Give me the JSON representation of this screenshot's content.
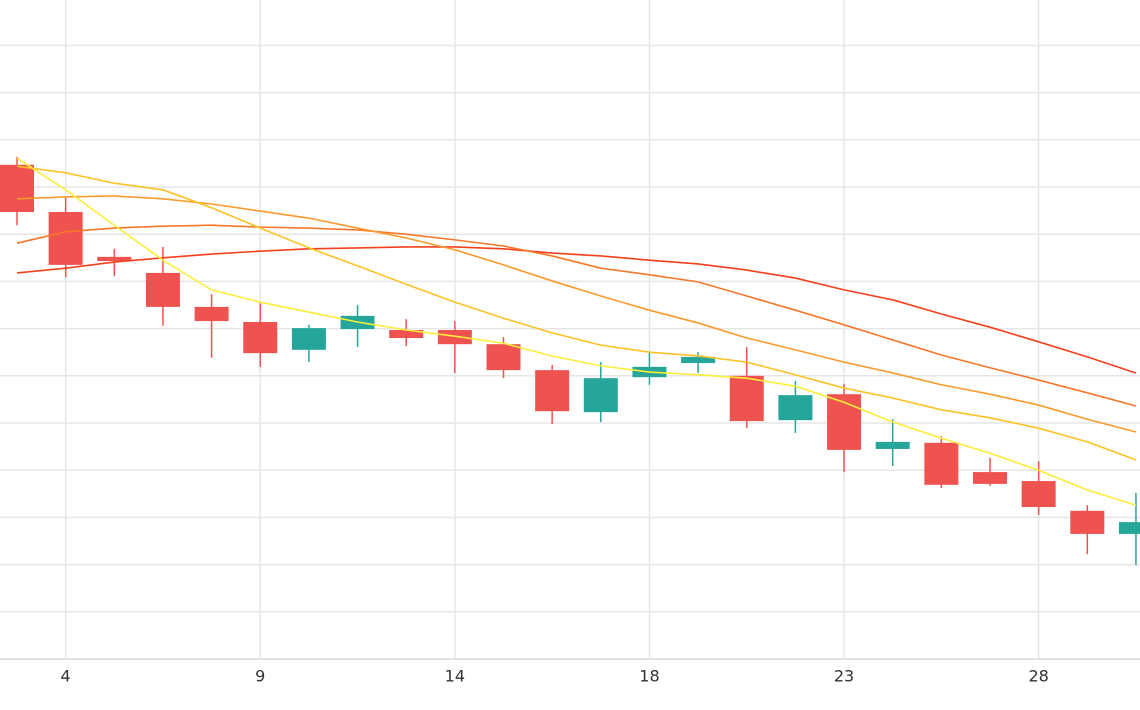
{
  "chart_data": {
    "type": "candlestick",
    "categories": [
      null,
      "4",
      null,
      null,
      null,
      "9",
      null,
      null,
      null,
      "14",
      null,
      null,
      null,
      "18",
      null,
      null,
      null,
      "23",
      null,
      null,
      null,
      "28",
      null,
      null
    ],
    "open": [
      104.7,
      94.7,
      85.2,
      81.8,
      74.6,
      71.4,
      65.5,
      69.9,
      69.7,
      69.7,
      66.7,
      61.2,
      52.3,
      59.7,
      62.7,
      60.0,
      50.6,
      56.1,
      44.5,
      45.8,
      39.6,
      37.7,
      31.4,
      26.5
    ],
    "high": [
      106.4,
      97.7,
      86.9,
      87.3,
      77.3,
      75.4,
      70.8,
      75.0,
      72.0,
      71.6,
      68.2,
      62.3,
      62.9,
      65.0,
      65.0,
      66.1,
      58.9,
      58.3,
      50.8,
      47.2,
      42.6,
      41.9,
      32.6,
      35.2
    ],
    "low": [
      91.9,
      80.9,
      81.1,
      70.6,
      63.8,
      61.9,
      62.9,
      66.1,
      66.3,
      60.6,
      59.5,
      49.8,
      50.2,
      58.1,
      60.6,
      48.9,
      47.9,
      39.6,
      40.9,
      36.2,
      36.7,
      30.5,
      22.2,
      19.9
    ],
    "close": [
      94.7,
      83.5,
      84.3,
      74.6,
      71.6,
      64.8,
      70.1,
      72.7,
      68.0,
      66.7,
      61.2,
      52.5,
      59.5,
      61.9,
      64.0,
      50.4,
      55.9,
      44.3,
      46.0,
      36.9,
      37.1,
      32.2,
      26.5,
      29.0
    ],
    "up_color": "#26a69a",
    "down_color": "#ef5350",
    "moving_averages": [
      {
        "color": "#f5401c",
        "values": [
          81.8,
          82.8,
          84.1,
          85.0,
          85.8,
          86.4,
          86.9,
          87.1,
          87.3,
          87.3,
          86.9,
          86.0,
          85.4,
          84.5,
          83.7,
          82.4,
          80.7,
          78.2,
          76.1,
          73.1,
          70.3,
          67.2,
          64.0,
          60.6
        ]
      },
      {
        "color": "#f7772a",
        "values": [
          88.1,
          90.5,
          91.3,
          91.7,
          91.9,
          91.5,
          91.3,
          90.9,
          90.0,
          88.8,
          87.5,
          85.4,
          82.8,
          81.4,
          79.9,
          76.9,
          73.9,
          70.8,
          67.6,
          64.4,
          61.7,
          59.1,
          56.4,
          53.6
        ]
      },
      {
        "color": "#fb9a2c",
        "values": [
          97.5,
          97.9,
          98.1,
          97.5,
          96.4,
          94.9,
          93.4,
          91.3,
          89.2,
          86.7,
          83.5,
          80.1,
          76.9,
          73.9,
          71.2,
          68.0,
          65.5,
          62.9,
          60.6,
          58.1,
          56.1,
          53.8,
          50.8,
          48.1
        ]
      },
      {
        "color": "#fcc224",
        "values": [
          104.4,
          103.0,
          100.8,
          99.4,
          95.6,
          91.3,
          87.1,
          83.3,
          79.4,
          75.6,
          72.2,
          69.1,
          66.5,
          65.0,
          64.2,
          62.9,
          60.2,
          57.4,
          55.3,
          52.8,
          51.1,
          48.9,
          46.0,
          42.2
        ]
      },
      {
        "color": "#fbee3a",
        "values": [
          106.1,
          99.4,
          91.9,
          84.5,
          78.2,
          75.6,
          73.5,
          71.4,
          69.7,
          68.4,
          66.9,
          64.2,
          62.1,
          60.8,
          60.2,
          59.5,
          57.8,
          54.4,
          50.2,
          46.8,
          43.6,
          40.0,
          35.8,
          32.6
        ]
      }
    ],
    "ylim": [
      0,
      140
    ],
    "yticks": [
      0,
      10,
      20,
      30,
      40,
      50,
      60,
      70,
      80,
      90,
      100,
      110,
      120,
      130
    ],
    "grid": true
  }
}
